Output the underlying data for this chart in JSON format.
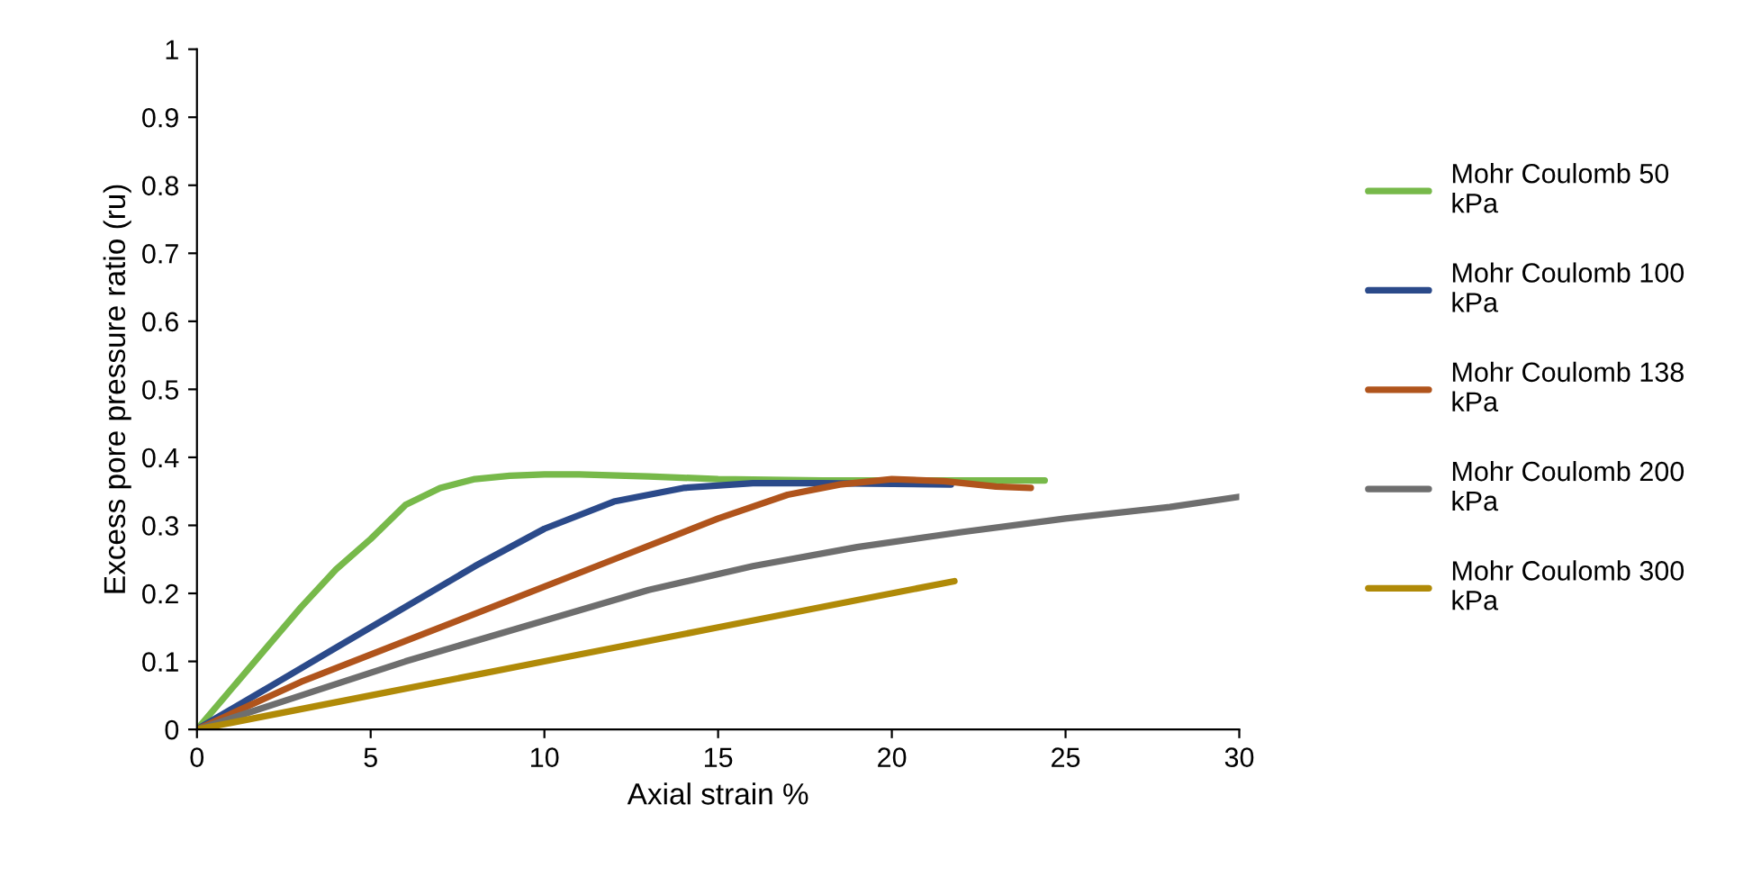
{
  "chart_data": {
    "type": "line",
    "xlabel": "Axial strain %",
    "ylabel": "Excess pore pressure ratio (ru)",
    "xlim": [
      0,
      30
    ],
    "xticks": [
      0,
      5,
      10,
      15,
      20,
      25,
      30
    ],
    "ylim": [
      0,
      1
    ],
    "yticks": [
      0,
      0.1,
      0.2,
      0.3,
      0.4,
      0.5,
      0.6,
      0.7,
      0.8,
      0.9,
      1
    ],
    "grid": false,
    "legend": "right",
    "marker": "none",
    "line_style": "solid",
    "series": [
      {
        "name": "Mohr Coulomb 50 kPa",
        "color": "#77b94a",
        "x": [
          0,
          1,
          2,
          3,
          4,
          5,
          6,
          7,
          8,
          9,
          10,
          11,
          13,
          15,
          18,
          21,
          24.4
        ],
        "values": [
          0,
          0.06,
          0.12,
          0.18,
          0.235,
          0.28,
          0.33,
          0.355,
          0.368,
          0.373,
          0.375,
          0.375,
          0.372,
          0.368,
          0.366,
          0.366,
          0.366
        ]
      },
      {
        "name": "Mohr Coulomb 100 kPa",
        "color": "#2b4a8a",
        "x": [
          0,
          2,
          4,
          6,
          8,
          10,
          12,
          14,
          16,
          18,
          21.7
        ],
        "values": [
          0,
          0.06,
          0.12,
          0.18,
          0.24,
          0.295,
          0.335,
          0.355,
          0.362,
          0.362,
          0.36
        ]
      },
      {
        "name": "Mohr Coulomb 138 kPa",
        "color": "#b0541c",
        "x": [
          0,
          3,
          6,
          9,
          12,
          15,
          17,
          18.5,
          20,
          21.5,
          23,
          24
        ],
        "values": [
          0,
          0.07,
          0.13,
          0.19,
          0.25,
          0.31,
          0.345,
          0.36,
          0.368,
          0.365,
          0.357,
          0.355
        ]
      },
      {
        "name": "Mohr Coulomb 200 kPa",
        "color": "#6e6e6e",
        "x": [
          0,
          3,
          6,
          10,
          13,
          16,
          19,
          22,
          25,
          28,
          30
        ],
        "values": [
          0,
          0.05,
          0.1,
          0.16,
          0.205,
          0.24,
          0.268,
          0.29,
          0.31,
          0.327,
          0.342
        ]
      },
      {
        "name": "Mohr Coulomb 300 kPa",
        "color": "#b08a08",
        "x": [
          0,
          5,
          10,
          15,
          19,
          21.8
        ],
        "values": [
          0,
          0.05,
          0.1,
          0.15,
          0.19,
          0.218
        ]
      }
    ]
  }
}
